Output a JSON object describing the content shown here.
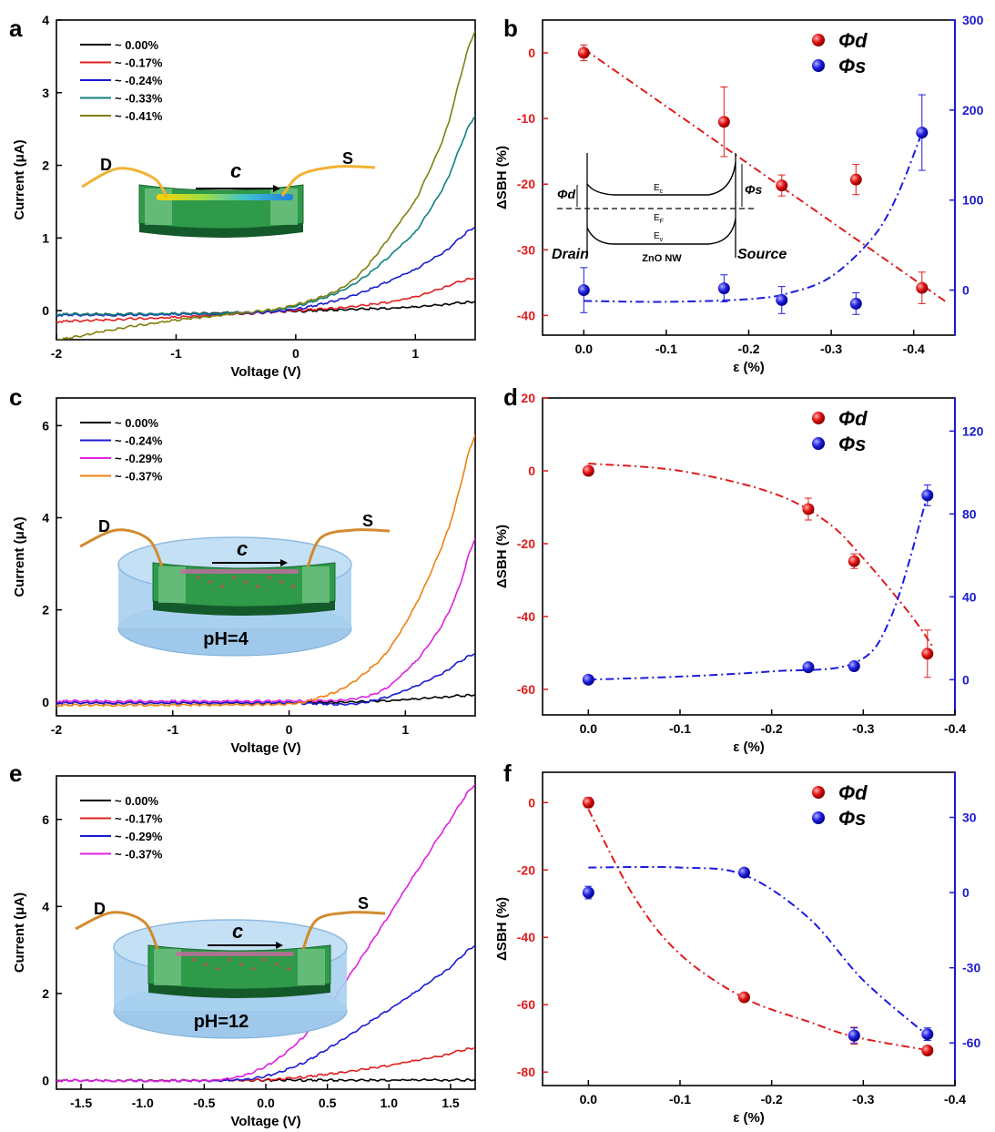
{
  "panels": [
    {
      "letter": "a",
      "chart_data": {
        "type": "line",
        "xlabel": "Voltage (V)",
        "ylabel": "Current (μA)",
        "xlim": [
          -2,
          1.5
        ],
        "ylim": [
          -0.4,
          4
        ],
        "xticks": [
          -2,
          -1,
          0,
          1
        ],
        "yticks": [
          0,
          1,
          2,
          3,
          4
        ],
        "legend": "top-left",
        "series": [
          {
            "name": "~  0.00%",
            "color": "#000000",
            "x": [
              -2,
              -1,
              0,
              0.5,
              1,
              1.5
            ],
            "y": [
              -0.05,
              -0.04,
              -0.01,
              0.02,
              0.05,
              0.12
            ]
          },
          {
            "name": "~ -0.17%",
            "color": "#e02020",
            "x": [
              -2,
              -1.5,
              -1,
              -0.5,
              0,
              0.5,
              1,
              1.5
            ],
            "y": [
              -0.15,
              -0.12,
              -0.09,
              -0.05,
              0,
              0.06,
              0.19,
              0.45
            ]
          },
          {
            "name": "~ -0.24%",
            "color": "#1a1ad0",
            "x": [
              -2,
              -1.5,
              -1,
              -0.5,
              0,
              0.5,
              1,
              1.25,
              1.5
            ],
            "y": [
              -0.06,
              -0.06,
              -0.05,
              -0.04,
              0.02,
              0.22,
              0.56,
              0.82,
              1.15
            ]
          },
          {
            "name": "~ -0.33%",
            "color": "#108080",
            "x": [
              -2,
              -1.5,
              -1,
              -0.5,
              0,
              0.5,
              1,
              1.25,
              1.5
            ],
            "y": [
              -0.05,
              -0.05,
              -0.04,
              -0.03,
              0.06,
              0.38,
              1.07,
              1.75,
              2.68
            ]
          },
          {
            "name": "~ -0.41%",
            "color": "#808010",
            "x": [
              -2,
              -1.5,
              -1,
              -0.5,
              0,
              0.5,
              1,
              1.25,
              1.5
            ],
            "y": [
              -0.4,
              -0.25,
              -0.13,
              -0.04,
              0.08,
              0.45,
              1.5,
              2.45,
              3.85
            ]
          }
        ],
        "inset": {
          "labels": [
            "D",
            "c",
            "S"
          ]
        }
      }
    },
    {
      "letter": "b",
      "chart_data": {
        "type": "scatter",
        "xlabel": "ε (%)",
        "ylabel": "ΔSBH (%)",
        "xlim": [
          0.05,
          -0.45
        ],
        "ylim": [
          -43,
          5
        ],
        "y2lim": [
          -50,
          300
        ],
        "xticks": [
          0,
          -0.1,
          -0.2,
          -0.3,
          -0.4
        ],
        "xtick_labels": [
          "0.0",
          "-0.1",
          "-0.2",
          "-0.3",
          "-0.4"
        ],
        "yticks": [
          0,
          -10,
          -20,
          -30,
          -40
        ],
        "y2ticks": [
          0,
          100,
          200,
          300
        ],
        "legend": "top-right",
        "series": [
          {
            "name": "Φd",
            "axis": "left",
            "color": "#e01b1b",
            "x": [
              0,
              -0.17,
              -0.24,
              -0.33,
              -0.41
            ],
            "y": [
              0,
              -10.5,
              -20.2,
              -19.3,
              -35.8
            ],
            "err": [
              1.2,
              5.3,
              1.6,
              2.3,
              2.4
            ]
          },
          {
            "name": "Φs",
            "axis": "right",
            "color": "#1b1be0",
            "x": [
              0,
              -0.17,
              -0.24,
              -0.33,
              -0.41
            ],
            "y": [
              0,
              2,
              -11,
              -15,
              175
            ],
            "err": [
              25,
              15,
              15,
              12,
              42
            ]
          }
        ],
        "fit_left": {
          "x": [
            0.0,
            -0.44
          ],
          "y": [
            0.6,
            -38
          ]
        },
        "fit_right": {
          "x": [
            0,
            -0.1,
            -0.2,
            -0.25,
            -0.3,
            -0.35,
            -0.38,
            -0.41
          ],
          "y": [
            -12,
            -13,
            -10,
            -3,
            15,
            58,
            105,
            175
          ]
        },
        "inset": {
          "drain": "Drain",
          "source": "Source",
          "nw": "ZnO NW",
          "ec": "E",
          "ef": "E",
          "ev": "E",
          "ec_sub": "c",
          "ef_sub": "F",
          "ev_sub": "v"
        }
      }
    },
    {
      "letter": "c",
      "chart_data": {
        "type": "line",
        "xlabel": "Voltage (V)",
        "ylabel": "Current (μA)",
        "xlim": [
          -2,
          1.6
        ],
        "ylim": [
          -0.3,
          6.6
        ],
        "xticks": [
          -2,
          -1,
          0,
          1
        ],
        "yticks": [
          0,
          2,
          4,
          6
        ],
        "legend": "top-left",
        "series": [
          {
            "name": "~  0.00%",
            "color": "#000000",
            "x": [
              -2,
              0,
              0.5,
              1,
              1.6
            ],
            "y": [
              -0.02,
              -0.02,
              0.0,
              0.05,
              0.15
            ]
          },
          {
            "name": "~ -0.24%",
            "color": "#1a1ad0",
            "x": [
              -2,
              0,
              0.5,
              0.7,
              1,
              1.3,
              1.6
            ],
            "y": [
              -0.02,
              -0.02,
              -0.05,
              0.02,
              0.25,
              0.6,
              1.05
            ]
          },
          {
            "name": "~ -0.29%",
            "color": "#e020e0",
            "x": [
              -2,
              0,
              0.5,
              0.8,
              1.1,
              1.3,
              1.45,
              1.6
            ],
            "y": [
              0.02,
              0.02,
              0.05,
              0.25,
              0.9,
              1.6,
              2.4,
              3.55
            ]
          },
          {
            "name": "~ -0.37%",
            "color": "#f08010",
            "x": [
              -2,
              0,
              0.2,
              0.5,
              0.8,
              1.0,
              1.2,
              1.4,
              1.6
            ],
            "y": [
              -0.07,
              -0.05,
              0.05,
              0.35,
              0.95,
              1.7,
              2.7,
              4.0,
              5.8
            ]
          }
        ],
        "inset": {
          "labels": [
            "D",
            "c",
            "S"
          ],
          "ph": "pH=4"
        }
      }
    },
    {
      "letter": "d",
      "chart_data": {
        "type": "scatter",
        "xlabel": "ε (%)",
        "ylabel": "ΔSBH (%)",
        "xlim": [
          0.05,
          -0.4
        ],
        "ylim": [
          -67,
          20
        ],
        "y2lim": [
          -17,
          136
        ],
        "xticks": [
          0,
          -0.1,
          -0.2,
          -0.3,
          -0.4
        ],
        "xtick_labels": [
          "0.0",
          "-0.1",
          "-0.2",
          "-0.3",
          "-0.4"
        ],
        "yticks": [
          20,
          0,
          -20,
          -40,
          -60
        ],
        "y2ticks": [
          0,
          40,
          80,
          120
        ],
        "legend": "top-right",
        "series": [
          {
            "name": "Φd",
            "axis": "left",
            "color": "#e01b1b",
            "x": [
              0,
              -0.24,
              -0.29,
              -0.37
            ],
            "y": [
              0,
              -10.5,
              -24.8,
              -50.2
            ],
            "err": [
              0.8,
              3,
              2,
              6.5
            ]
          },
          {
            "name": "Φs",
            "axis": "right",
            "color": "#1b1be0",
            "x": [
              0,
              -0.24,
              -0.29,
              -0.37
            ],
            "y": [
              0,
              6,
              6.5,
              89
            ],
            "err": [
              0.5,
              1,
              1,
              5
            ]
          }
        ],
        "fit_left": {
          "x": [
            0.0,
            -0.1,
            -0.2,
            -0.26,
            -0.3,
            -0.35,
            -0.375
          ],
          "y": [
            2,
            0,
            -6,
            -14,
            -24,
            -39,
            -48
          ]
        },
        "fit_right": {
          "x": [
            0,
            -0.1,
            -0.2,
            -0.29,
            -0.33,
            -0.37
          ],
          "y": [
            0,
            1.5,
            4,
            8,
            30,
            89
          ]
        }
      }
    },
    {
      "letter": "e",
      "chart_data": {
        "type": "line",
        "xlabel": "Voltage (V)",
        "ylabel": "Current (μA)",
        "xlim": [
          -1.7,
          1.7
        ],
        "ylim": [
          -0.2,
          7
        ],
        "xticks": [
          -1.5,
          -1.0,
          -0.5,
          0.0,
          0.5,
          1.0,
          1.5
        ],
        "xtick_labels": [
          "-1.5",
          "-1.0",
          "-0.5",
          "0.0",
          "0.5",
          "1.0",
          "1.5"
        ],
        "yticks": [
          0,
          2,
          4,
          6
        ],
        "legend": "top-left",
        "series": [
          {
            "name": "~  0.00%",
            "color": "#000000",
            "x": [
              -1.7,
              1.7
            ],
            "y": [
              0,
              0.01
            ]
          },
          {
            "name": "~ -0.17%",
            "color": "#e02020",
            "x": [
              -1.7,
              -0.2,
              0.2,
              0.6,
              1.0,
              1.4,
              1.7
            ],
            "y": [
              0,
              0,
              0.05,
              0.18,
              0.35,
              0.55,
              0.75
            ]
          },
          {
            "name": "~ -0.29%",
            "color": "#1a1ad0",
            "x": [
              -1.7,
              -0.3,
              0.0,
              0.3,
              0.6,
              0.9,
              1.2,
              1.5,
              1.7
            ],
            "y": [
              0,
              0,
              0.1,
              0.4,
              0.9,
              1.45,
              2.0,
              2.6,
              3.1
            ]
          },
          {
            "name": "~ -0.37%",
            "color": "#e020e0",
            "x": [
              -1.7,
              -0.5,
              -0.2,
              0.1,
              0.4,
              0.7,
              1.0,
              1.3,
              1.5,
              1.7
            ],
            "y": [
              0,
              0,
              0.1,
              0.5,
              1.3,
              2.5,
              3.8,
              5.1,
              6.0,
              6.8
            ]
          }
        ],
        "inset": {
          "labels": [
            "D",
            "c",
            "S"
          ],
          "ph": "pH=12"
        }
      }
    },
    {
      "letter": "f",
      "chart_data": {
        "type": "scatter",
        "xlabel": "ε (%)",
        "ylabel": "ΔSBH (%)",
        "xlim": [
          0.05,
          -0.4
        ],
        "ylim": [
          -84,
          9
        ],
        "y2lim": [
          -77,
          48
        ],
        "xticks": [
          0,
          -0.1,
          -0.2,
          -0.3,
          -0.4
        ],
        "xtick_labels": [
          "0.0",
          "-0.1",
          "-0.2",
          "-0.3",
          "-0.4"
        ],
        "yticks": [
          0,
          -20,
          -40,
          -60,
          -80
        ],
        "y2ticks": [
          30,
          0,
          -30,
          -60
        ],
        "legend": "top-right",
        "series": [
          {
            "name": "Φd",
            "axis": "left",
            "color": "#e01b1b",
            "x": [
              0,
              -0.17,
              -0.29,
              -0.37
            ],
            "y": [
              0,
              -57.8,
              -69.2,
              -73.6
            ],
            "err": [
              1.5,
              0.8,
              2.5,
              0.8
            ]
          },
          {
            "name": "Φs",
            "axis": "right",
            "color": "#1b1be0",
            "x": [
              0,
              -0.17,
              -0.29,
              -0.37
            ],
            "y": [
              0,
              8,
              -57,
              -56.5
            ],
            "err": [
              2.5,
              1.0,
              3,
              2.5
            ]
          }
        ],
        "fit_left": {
          "x": [
            0,
            -0.05,
            -0.1,
            -0.17,
            -0.24,
            -0.29,
            -0.37
          ],
          "y": [
            -2,
            -28,
            -45,
            -58,
            -65,
            -69.5,
            -73.5
          ]
        },
        "fit_right": {
          "x": [
            0,
            -0.1,
            -0.17,
            -0.24,
            -0.3,
            -0.37
          ],
          "y": [
            10,
            10,
            7,
            -10,
            -35,
            -57
          ]
        }
      }
    }
  ]
}
